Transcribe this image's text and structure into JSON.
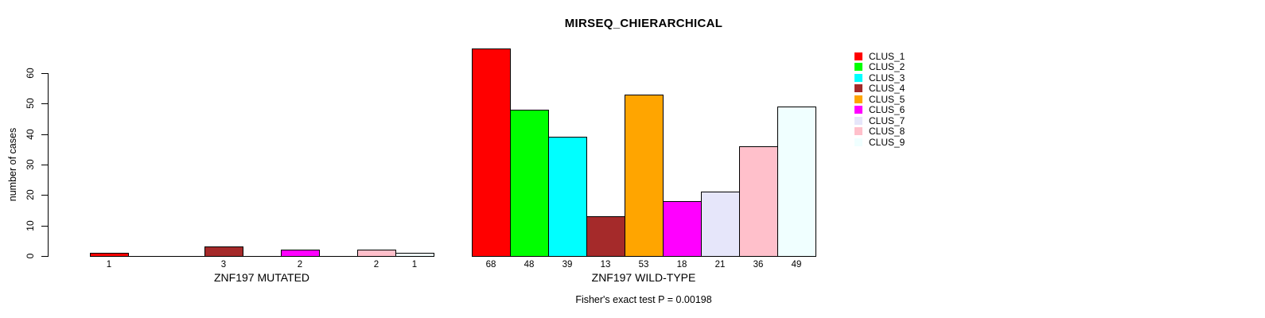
{
  "title": "MIRSEQ_CHIERARCHICAL",
  "chart_data": {
    "type": "bar",
    "title": "MIRSEQ_CHIERARCHICAL",
    "xlabel": "",
    "ylabel": "number of cases",
    "ylim": [
      0,
      60
    ],
    "yticks": [
      0,
      10,
      20,
      30,
      40,
      50,
      60
    ],
    "categories": [
      "CLUS_1",
      "CLUS_2",
      "CLUS_3",
      "CLUS_4",
      "CLUS_5",
      "CLUS_6",
      "CLUS_7",
      "CLUS_8",
      "CLUS_9"
    ],
    "colors": [
      "#FF0000",
      "#00FF00",
      "#00FFFF",
      "#A52A2A",
      "#FFA500",
      "#FF00FF",
      "#E6E6FA",
      "#FFC0CB",
      "#F0FFFF"
    ],
    "series": [
      {
        "name": "ZNF197 MUTATED",
        "values": [
          1,
          0,
          0,
          3,
          0,
          2,
          0,
          2,
          1
        ]
      },
      {
        "name": "ZNF197 WILD-TYPE",
        "values": [
          68,
          48,
          39,
          13,
          53,
          18,
          21,
          36,
          49
        ]
      }
    ],
    "bar_value_labels_shown": true,
    "zero_bars_hidden": true,
    "grid": false,
    "legend_position": "top-right",
    "bar_border_color": "#000000",
    "annotation": "Fisher's exact test P = 0.00198"
  },
  "legend": {
    "items": [
      {
        "label": "CLUS_1",
        "color": "#FF0000"
      },
      {
        "label": "CLUS_2",
        "color": "#00FF00"
      },
      {
        "label": "CLUS_3",
        "color": "#00FFFF"
      },
      {
        "label": "CLUS_4",
        "color": "#A52A2A"
      },
      {
        "label": "CLUS_5",
        "color": "#FFA500"
      },
      {
        "label": "CLUS_6",
        "color": "#FF00FF"
      },
      {
        "label": "CLUS_7",
        "color": "#E6E6FA"
      },
      {
        "label": "CLUS_8",
        "color": "#FFC0CB"
      },
      {
        "label": "CLUS_9",
        "color": "#F0FFFF"
      }
    ]
  }
}
